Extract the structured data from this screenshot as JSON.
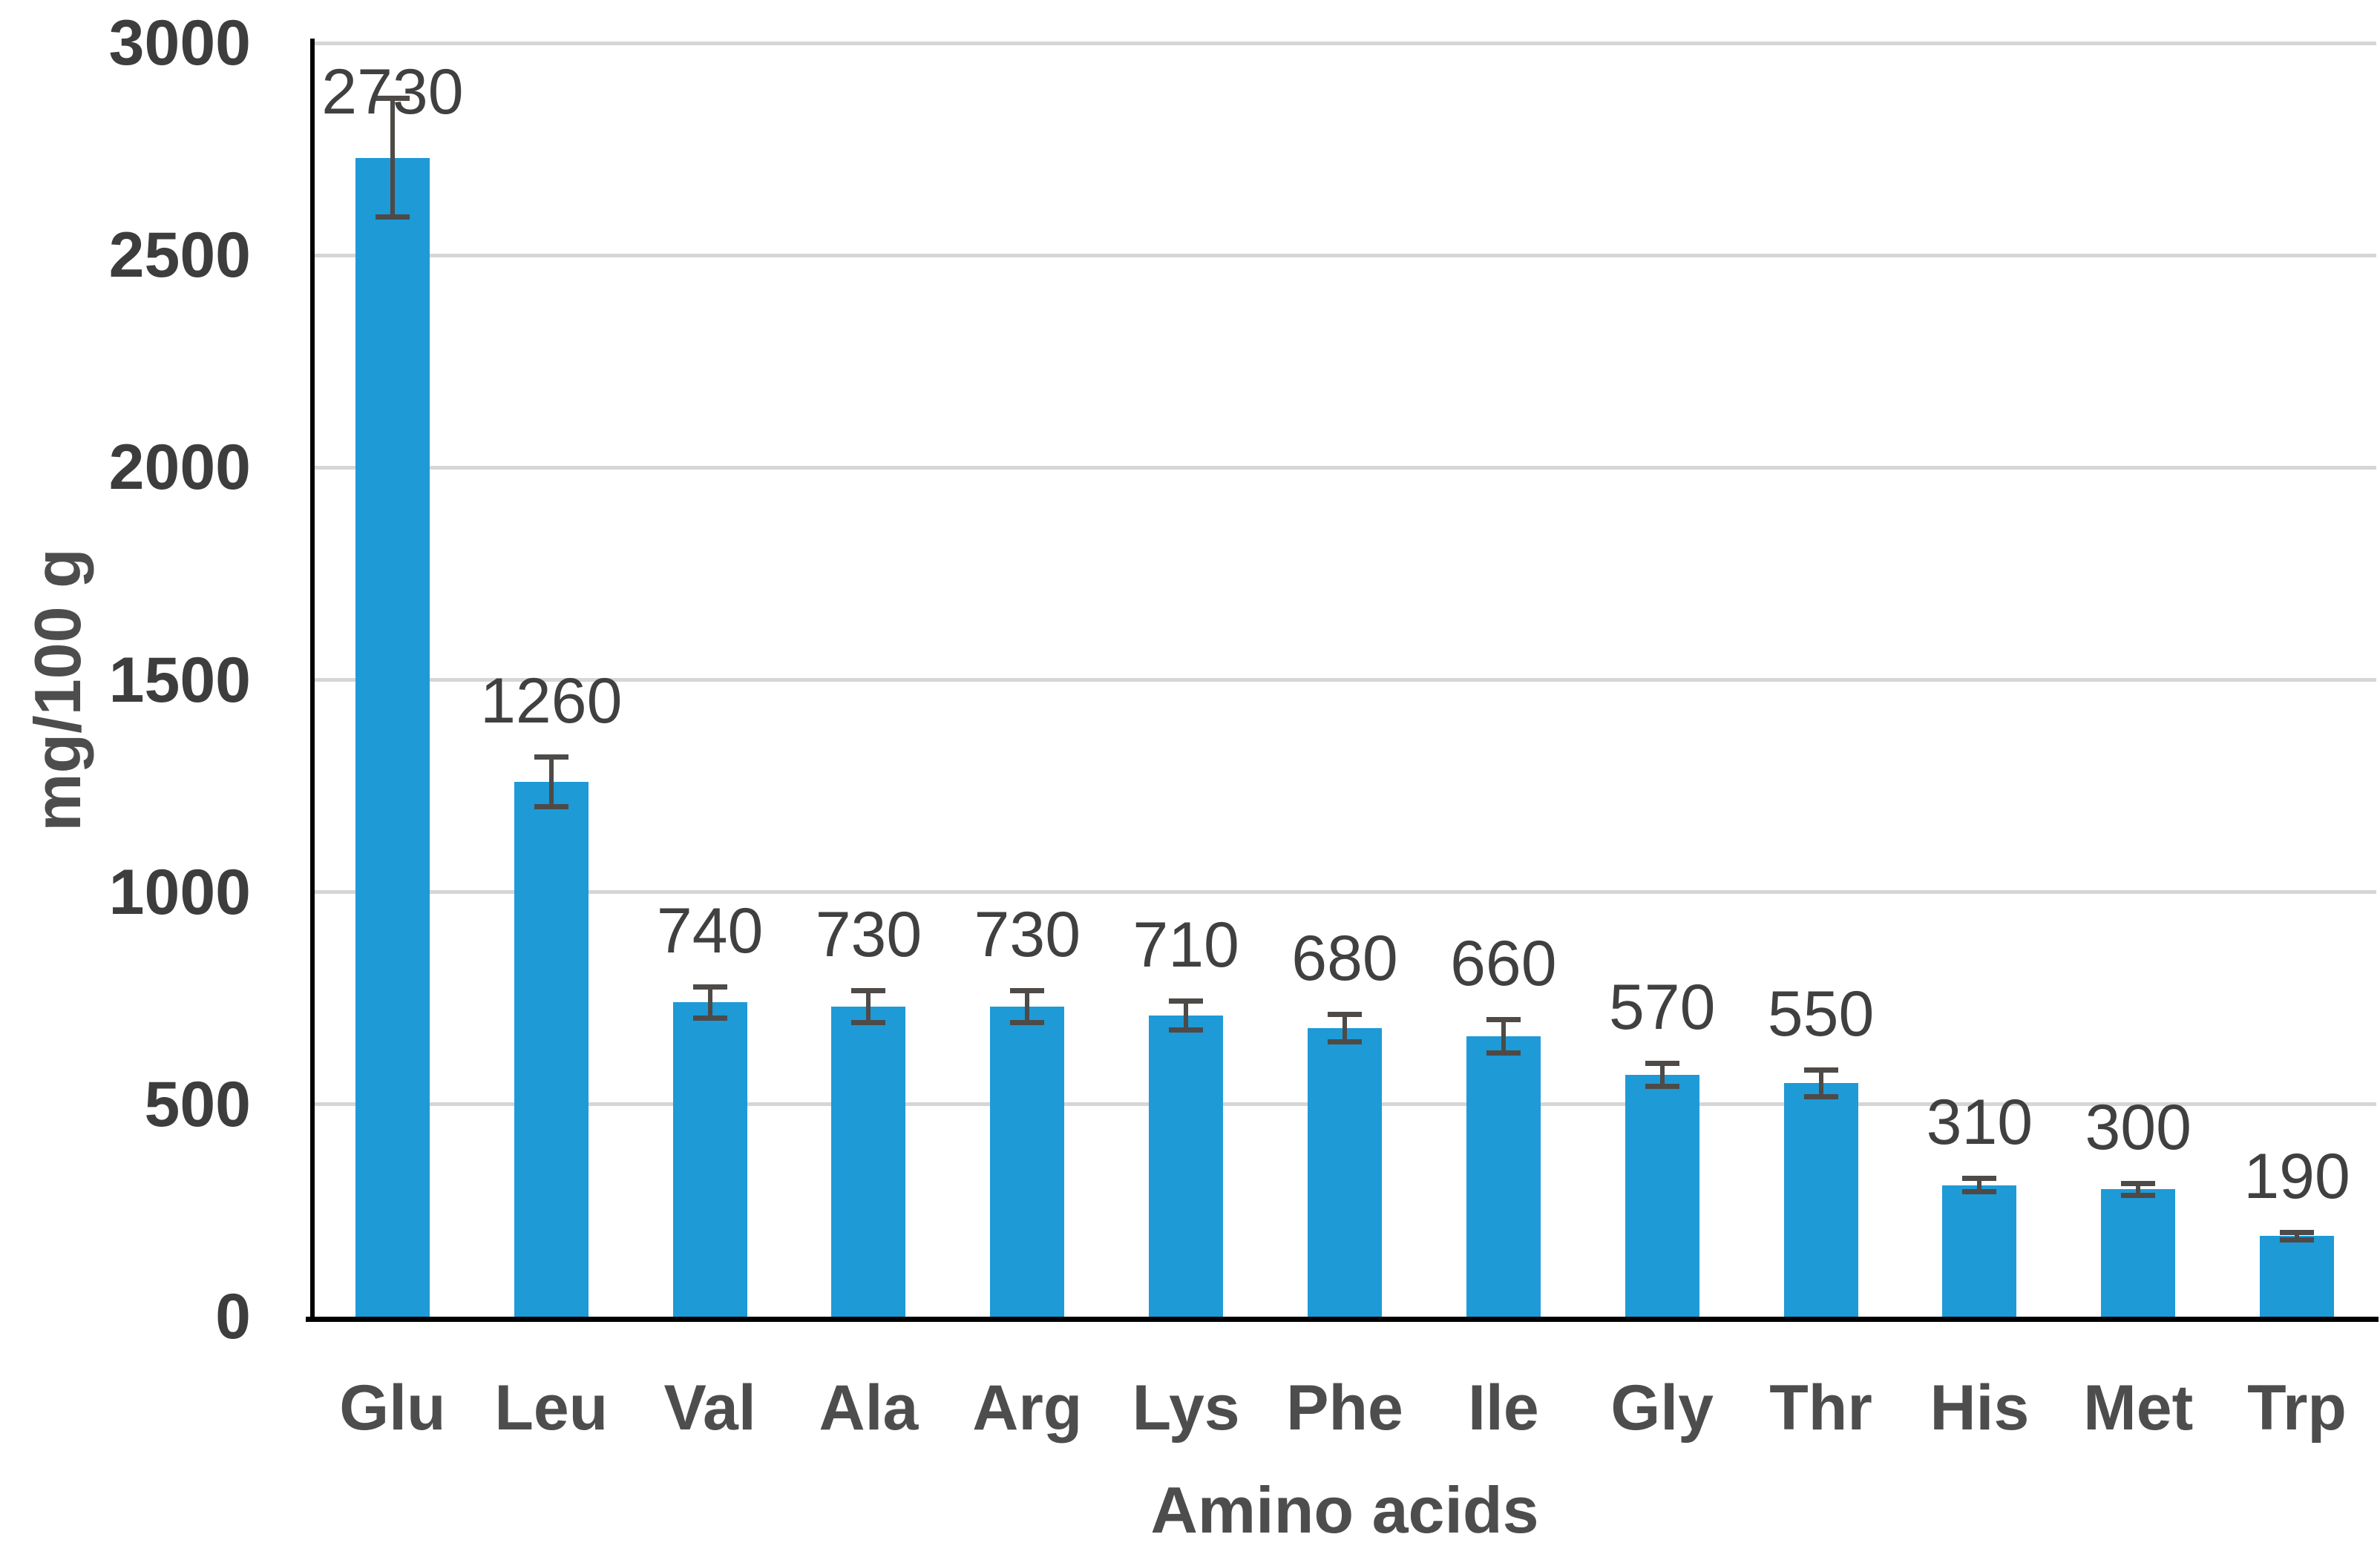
{
  "chart_data": {
    "type": "bar",
    "title": "",
    "xlabel": "Amino acids",
    "ylabel": "mg/100 g",
    "categories": [
      "Glu",
      "Leu",
      "Val",
      "Ala",
      "Arg",
      "Lys",
      "Phe",
      "Ile",
      "Gly",
      "Thr",
      "His",
      "Met",
      "Trp"
    ],
    "values": [
      2730,
      1260,
      740,
      730,
      730,
      710,
      680,
      660,
      570,
      550,
      310,
      300,
      190
    ],
    "error_bars": [
      140,
      60,
      38,
      38,
      38,
      35,
      33,
      40,
      28,
      32,
      16,
      15,
      10
    ],
    "data_labels": [
      "2730",
      "1260",
      "740",
      "730",
      "730",
      "710",
      "680",
      "660",
      "570",
      "550",
      "310",
      "300",
      "190"
    ],
    "ylim": [
      0,
      3000
    ],
    "yticks": [
      0,
      500,
      1000,
      1500,
      2000,
      2500,
      3000
    ],
    "ytick_labels": [
      "0",
      "500",
      "1000",
      "1500",
      "2000",
      "2500",
      "3000"
    ],
    "grid": true,
    "legend": "none",
    "colors": {
      "bar_fill": "#1E9AD7",
      "error_bar": "#4D4A47",
      "gridline": "#D6D6D6",
      "axis_line": "#000000",
      "tick_text": "#3D3D3D",
      "data_label_text": "#404040",
      "category_text": "#4D4D4D",
      "axis_title_text": "#4D4D4D",
      "background": "#FFFFFF"
    }
  }
}
